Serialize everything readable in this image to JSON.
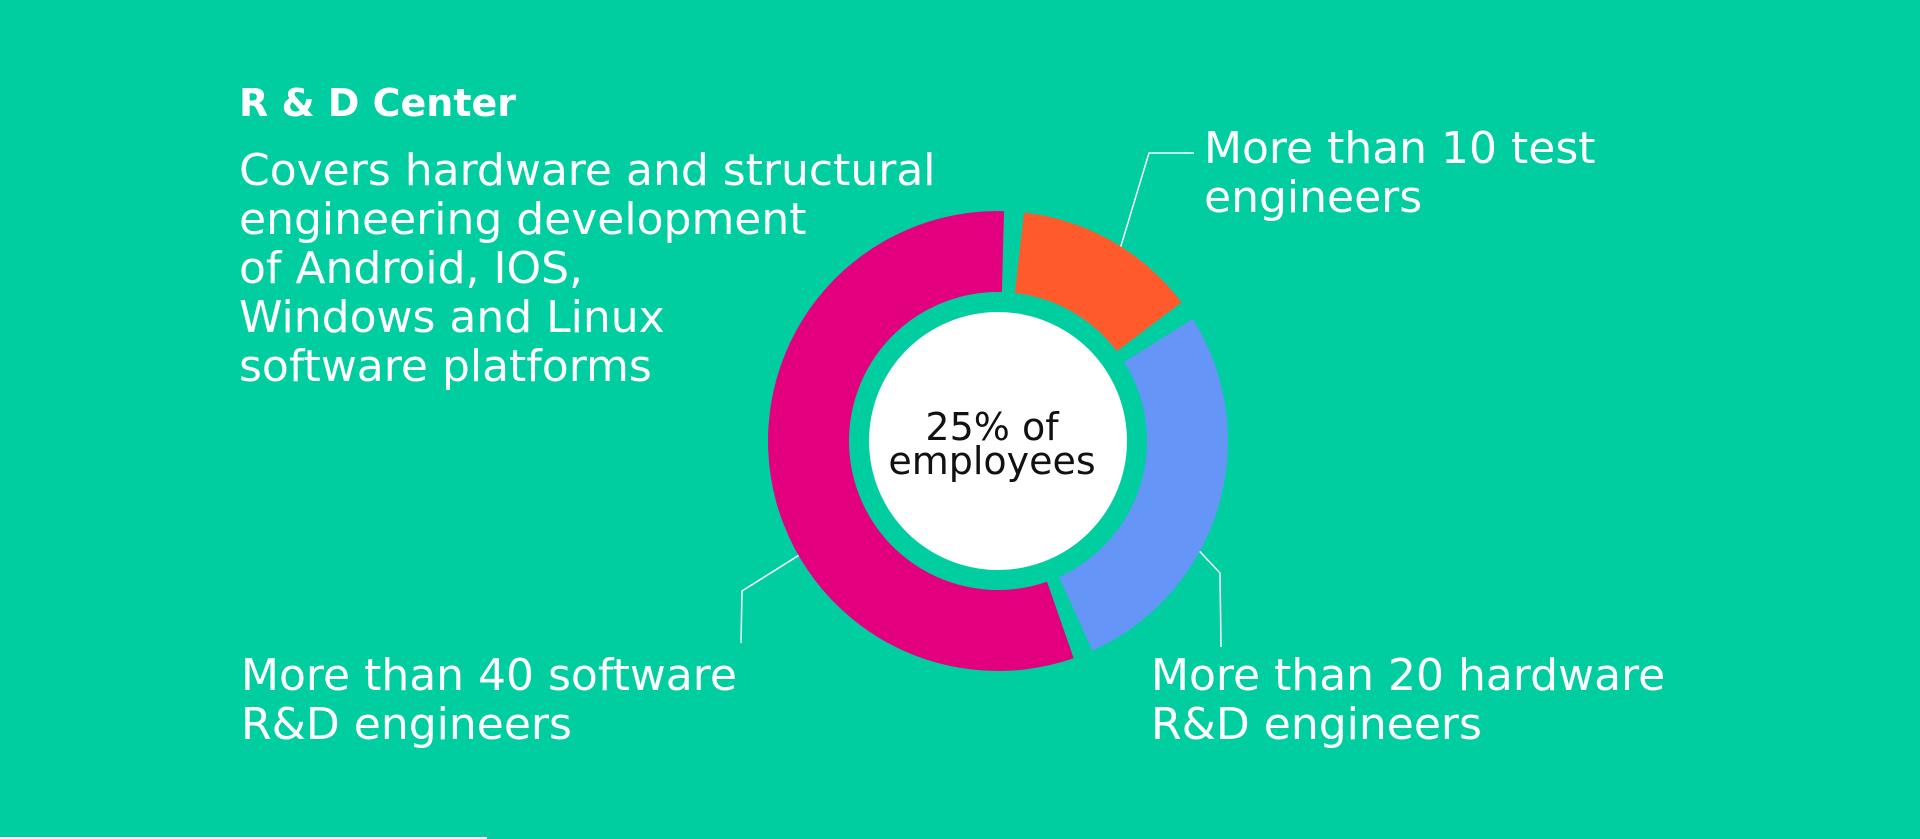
{
  "chart_data": {
    "type": "donut",
    "title": "R & D Center",
    "description_lines": [
      "Covers hardware and structural",
      "engineering development",
      "of Android, IOS,",
      "Windows and Linux",
      "software platforms"
    ],
    "center_label_lines": [
      "25% of",
      "employees"
    ],
    "categories": [
      [
        "More than 10 test",
        "engineers"
      ],
      [
        "More than 20 hardware",
        "R&D engineers"
      ],
      [
        "More than 40 software",
        "R&D engineers"
      ]
    ],
    "values": [
      10,
      20,
      40
    ],
    "colors": [
      "#ff5a2b",
      "#6495f7",
      "#e3007f"
    ]
  }
}
